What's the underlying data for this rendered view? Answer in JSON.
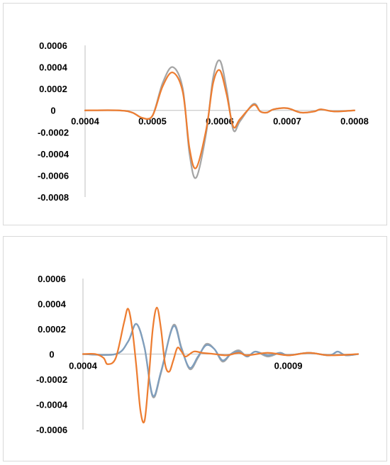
{
  "colors": {
    "orange": "#ed7d31",
    "gray": "#a5a5a5",
    "blue": "#7f9ebd",
    "axis": "#bfbfbf"
  },
  "chart_data": [
    {
      "type": "line",
      "title": "",
      "xlabel": "",
      "ylabel": "",
      "xlim": [
        0.0004,
        0.0008
      ],
      "ylim": [
        -0.0008,
        0.0006
      ],
      "grid": false,
      "legend": "none",
      "y_ticks": [
        "0.0006",
        "0.0004",
        "0.0002",
        "0",
        "-0.0002",
        "-0.0004",
        "-0.0006",
        "-0.0008"
      ],
      "x_ticks": [
        "0.0004",
        "0.0005",
        "0.0006",
        "0.0007",
        "0.0008"
      ],
      "series": [
        {
          "color": "#a5a5a5",
          "points": [
            [
              0.0004,
              0
            ],
            [
              0.00045,
              0
            ],
            [
              0.00047,
              -2e-05
            ],
            [
              0.000485,
              -7e-05
            ],
            [
              0.0005,
              -5e-05
            ],
            [
              0.000515,
              0.00025
            ],
            [
              0.00053,
              0.0004
            ],
            [
              0.000545,
              0.0002
            ],
            [
              0.000555,
              -0.0004
            ],
            [
              0.000565,
              -0.00062
            ],
            [
              0.00058,
              -0.0002
            ],
            [
              0.00059,
              0.0003
            ],
            [
              0.0006,
              0.00046
            ],
            [
              0.00061,
              0.0002
            ],
            [
              0.00062,
              -0.00018
            ],
            [
              0.00063,
              -0.0001
            ],
            [
              0.00065,
              6e-05
            ],
            [
              0.00066,
              -1e-05
            ],
            [
              0.00067,
              -2e-05
            ],
            [
              0.00068,
              1e-05
            ],
            [
              0.0007,
              2e-05
            ],
            [
              0.00072,
              -2e-05
            ],
            [
              0.00074,
              -1e-05
            ],
            [
              0.00075,
              1e-05
            ],
            [
              0.00077,
              -1e-05
            ],
            [
              0.0008,
              0
            ]
          ]
        },
        {
          "color": "#ed7d31",
          "points": [
            [
              0.0004,
              0
            ],
            [
              0.00045,
              0
            ],
            [
              0.00047,
              -2e-05
            ],
            [
              0.000485,
              -7e-05
            ],
            [
              0.0005,
              -5e-05
            ],
            [
              0.000515,
              0.00022
            ],
            [
              0.00053,
              0.00035
            ],
            [
              0.000545,
              0.00017
            ],
            [
              0.000555,
              -0.00035
            ],
            [
              0.000565,
              -0.00053
            ],
            [
              0.00058,
              -0.00017
            ],
            [
              0.00059,
              0.00025
            ],
            [
              0.0006,
              0.00037
            ],
            [
              0.00061,
              0.00015
            ],
            [
              0.00062,
              -0.00015
            ],
            [
              0.00063,
              -8e-05
            ],
            [
              0.00065,
              5e-05
            ],
            [
              0.00066,
              -1e-05
            ],
            [
              0.00067,
              -2e-05
            ],
            [
              0.00068,
              1e-05
            ],
            [
              0.0007,
              2e-05
            ],
            [
              0.00072,
              -2e-05
            ],
            [
              0.00074,
              -1e-05
            ],
            [
              0.00075,
              1e-05
            ],
            [
              0.00077,
              -1e-05
            ],
            [
              0.0008,
              0
            ]
          ]
        }
      ]
    },
    {
      "type": "line",
      "title": "",
      "xlabel": "",
      "ylabel": "",
      "xlim": [
        0.0004,
        0.00107
      ],
      "ylim": [
        -0.0006,
        0.0006
      ],
      "grid": false,
      "legend": "none",
      "y_ticks": [
        "0.0006",
        "0.0004",
        "0.0002",
        "0",
        "-0.0002",
        "-0.0004",
        "-0.0006"
      ],
      "x_ticks": [
        {
          "value": 0.0004,
          "label": "0.0004"
        },
        {
          "value": 0.0009,
          "label": "0.0009"
        }
      ],
      "series": [
        {
          "color": "#a5a5a5",
          "points": [
            [
              0.0004,
              0
            ],
            [
              0.00048,
              0
            ],
            [
              0.00051,
              0.0001
            ],
            [
              0.00053,
              0.00024
            ],
            [
              0.00055,
              5e-05
            ],
            [
              0.00057,
              -0.00034
            ],
            [
              0.00059,
              -0.00015
            ],
            [
              0.00062,
              0.00023
            ],
            [
              0.00064,
              5e-05
            ],
            [
              0.00066,
              -0.00012
            ],
            [
              0.00068,
              -3e-05
            ],
            [
              0.0007,
              8e-05
            ],
            [
              0.00072,
              4e-05
            ],
            [
              0.00074,
              -6e-05
            ],
            [
              0.00076,
              0
            ],
            [
              0.00078,
              3e-05
            ],
            [
              0.0008,
              -2e-05
            ],
            [
              0.00082,
              2e-05
            ],
            [
              0.00085,
              -2e-05
            ],
            [
              0.00088,
              1e-05
            ],
            [
              0.0009,
              -1e-05
            ],
            [
              0.00095,
              1e-05
            ],
            [
              0.001,
              -1e-05
            ],
            [
              0.00102,
              2e-05
            ],
            [
              0.00104,
              -1e-05
            ],
            [
              0.00107,
              0
            ]
          ]
        },
        {
          "color": "#7f9ebd",
          "points": [
            [
              0.0004,
              0
            ],
            [
              0.00048,
              0
            ],
            [
              0.00051,
              0.0001
            ],
            [
              0.00053,
              0.00024
            ],
            [
              0.00055,
              5e-05
            ],
            [
              0.00057,
              -0.00033
            ],
            [
              0.00059,
              -0.00014
            ],
            [
              0.00062,
              0.00022
            ],
            [
              0.00064,
              4e-05
            ],
            [
              0.00066,
              -0.00011
            ],
            [
              0.00068,
              -2e-05
            ],
            [
              0.0007,
              7e-05
            ],
            [
              0.00072,
              4e-05
            ],
            [
              0.00074,
              -5e-05
            ],
            [
              0.00076,
              0
            ],
            [
              0.00078,
              2e-05
            ],
            [
              0.0008,
              -2e-05
            ],
            [
              0.00082,
              2e-05
            ],
            [
              0.00085,
              -1e-05
            ],
            [
              0.00088,
              1e-05
            ],
            [
              0.0009,
              -1e-05
            ],
            [
              0.00095,
              1e-05
            ],
            [
              0.001,
              -1e-05
            ],
            [
              0.00102,
              2e-05
            ],
            [
              0.00104,
              -1e-05
            ],
            [
              0.00107,
              0
            ]
          ]
        },
        {
          "color": "#ed7d31",
          "points": [
            [
              0.0004,
              0
            ],
            [
              0.00043,
              0
            ],
            [
              0.00045,
              -3e-05
            ],
            [
              0.00046,
              -8e-05
            ],
            [
              0.00048,
              -3e-05
            ],
            [
              0.0005,
              0.00025
            ],
            [
              0.00051,
              0.00036
            ],
            [
              0.00052,
              0.0002
            ],
            [
              0.00053,
              -0.0001
            ],
            [
              0.00054,
              -0.00045
            ],
            [
              0.00055,
              -0.00053
            ],
            [
              0.00056,
              -0.0002
            ],
            [
              0.00057,
              0.0002
            ],
            [
              0.00058,
              0.00037
            ],
            [
              0.00059,
              0.0002
            ],
            [
              0.0006,
              -8e-05
            ],
            [
              0.00061,
              -0.00014
            ],
            [
              0.00062,
              -5e-05
            ],
            [
              0.00063,
              5e-05
            ],
            [
              0.00064,
              2e-05
            ],
            [
              0.00065,
              -2e-05
            ],
            [
              0.00067,
              2e-05
            ],
            [
              0.00069,
              1e-05
            ],
            [
              0.00072,
              0
            ],
            [
              0.00075,
              -1e-05
            ],
            [
              0.00078,
              1e-05
            ],
            [
              0.0008,
              -1e-05
            ],
            [
              0.00085,
              1e-05
            ],
            [
              0.0009,
              -1e-05
            ],
            [
              0.00095,
              1e-05
            ],
            [
              0.001,
              -1e-05
            ],
            [
              0.00107,
              0
            ]
          ]
        }
      ]
    }
  ]
}
